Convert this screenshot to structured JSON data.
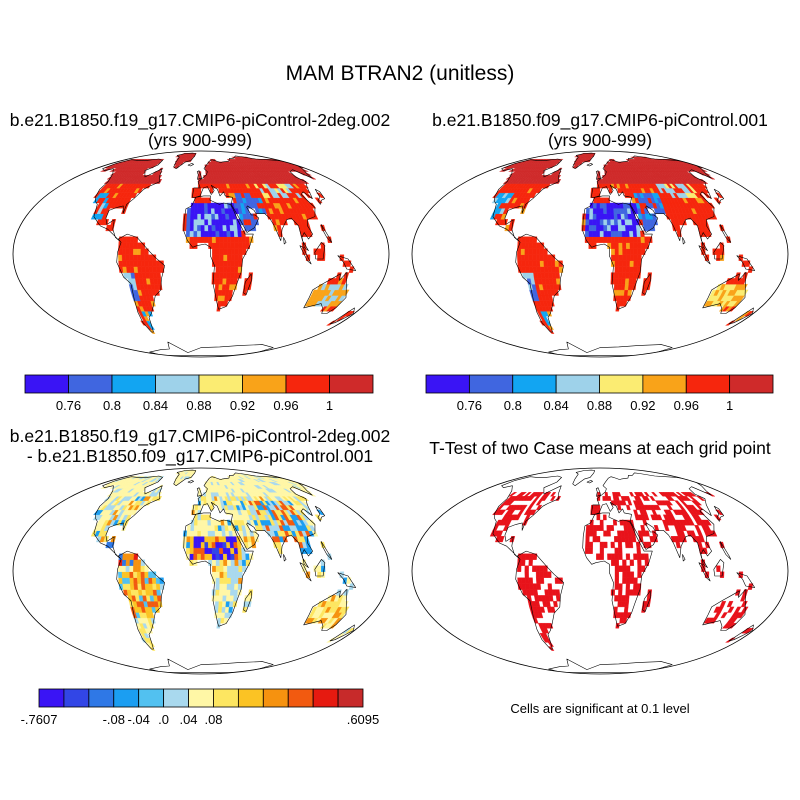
{
  "figure": {
    "title": "MAM BTRAN2 (unitless)"
  },
  "panels": [
    {
      "id": "case1",
      "title_lines": [
        "b.e21.B1850.f19_g17.CMIP6-piControl-2deg.002",
        "(yrs 900-999)"
      ]
    },
    {
      "id": "case2",
      "title_lines": [
        "b.e21.B1850.f09_g17.CMIP6-piControl.001",
        "(yrs 900-999)"
      ]
    },
    {
      "id": "difference",
      "title_lines": [
        "b.e21.B1850.f19_g17.CMIP6-piControl-2deg.002",
        "- b.e21.B1850.f09_g17.CMIP6-piControl.001"
      ]
    },
    {
      "id": "ttest",
      "title_lines": [
        "T-Test of two Case means at each grid point"
      ],
      "note": "Cells are significant at 0.1 level",
      "significant_color": "#e8121a"
    }
  ],
  "colorbars": {
    "mean": {
      "colors": [
        "#3a14f5",
        "#4066e0",
        "#12a5f2",
        "#9ed2ea",
        "#fbec72",
        "#f9a319",
        "#f6260d",
        "#cf2a2a"
      ],
      "labels": [
        "0.76",
        "0.8",
        "0.84",
        "0.88",
        "0.92",
        "0.96",
        "1"
      ]
    },
    "diff": {
      "colors": [
        "#3a14f5",
        "#3246e6",
        "#2f78e6",
        "#1b9ef2",
        "#52c1f0",
        "#a9d9ee",
        "#fff7a6",
        "#fde661",
        "#fbc324",
        "#f6920f",
        "#f25a10",
        "#e61a10",
        "#c72a2a"
      ],
      "labels": [
        "-.7607",
        "-.08",
        "-.04",
        ".0",
        ".04",
        ".08",
        ".6095"
      ]
    }
  }
}
